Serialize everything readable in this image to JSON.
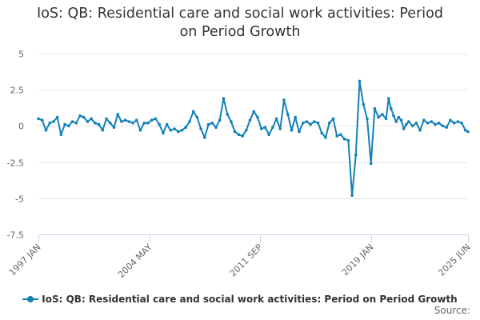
{
  "title_line1": "IoS: QB: Residential care and social work activities: Period",
  "title_line2": "on Period Growth",
  "source_label": "Source:",
  "colors": {
    "series": "#1380b8",
    "grid": "#e6e6e6",
    "axis": "#ccd6eb",
    "text": "#666666"
  },
  "chart_data": {
    "type": "line",
    "title": "IoS: QB: Residential care and social work activities: Period on Period Growth",
    "xlabel": "",
    "ylabel": "",
    "ylim": [
      -7.5,
      5
    ],
    "yticks": [
      5,
      2.5,
      0,
      -2.5,
      -5,
      -7.5
    ],
    "ytick_labels": [
      "5",
      "2.5",
      "0",
      "-2.5",
      "-5",
      "-7.5"
    ],
    "xlim": [
      1997.0,
      2025.42
    ],
    "xticks": [
      {
        "pos": 1997.0,
        "label": "1997 JAN"
      },
      {
        "pos": 2004.33,
        "label": "2004 MAY"
      },
      {
        "pos": 2011.67,
        "label": "2011 SEP"
      },
      {
        "pos": 2019.0,
        "label": "2019 JAN"
      },
      {
        "pos": 2025.42,
        "label": "2025 JUN"
      }
    ],
    "grid": true,
    "legend_position": "bottom",
    "series": [
      {
        "name": "IoS: QB: Residential care and social work activities: Period on Period Growth",
        "x": [
          1997.0,
          1997.25,
          1997.5,
          1997.75,
          1998.0,
          1998.25,
          1998.5,
          1998.75,
          1999.0,
          1999.25,
          1999.5,
          1999.75,
          2000.0,
          2000.25,
          2000.5,
          2000.75,
          2001.0,
          2001.25,
          2001.5,
          2001.75,
          2002.0,
          2002.25,
          2002.5,
          2002.75,
          2003.0,
          2003.25,
          2003.5,
          2003.75,
          2004.0,
          2004.25,
          2004.5,
          2004.75,
          2005.0,
          2005.25,
          2005.5,
          2005.75,
          2006.0,
          2006.25,
          2006.5,
          2006.75,
          2007.0,
          2007.25,
          2007.5,
          2007.75,
          2008.0,
          2008.25,
          2008.5,
          2008.75,
          2009.0,
          2009.25,
          2009.5,
          2009.75,
          2010.0,
          2010.25,
          2010.5,
          2010.75,
          2011.0,
          2011.25,
          2011.5,
          2011.75,
          2012.0,
          2012.25,
          2012.5,
          2012.75,
          2013.0,
          2013.25,
          2013.5,
          2013.75,
          2014.0,
          2014.25,
          2014.5,
          2014.75,
          2015.0,
          2015.25,
          2015.5,
          2015.75,
          2016.0,
          2016.25,
          2016.5,
          2016.75,
          2017.0,
          2017.25,
          2017.5,
          2017.75,
          2018.0,
          2018.25,
          2018.5,
          2018.75,
          2019.0,
          2019.25,
          2019.5,
          2019.75,
          2020.0,
          2020.17,
          2020.33,
          2020.5,
          2020.67,
          2020.83,
          2021.0,
          2021.17,
          2021.33,
          2021.5,
          2021.75,
          2022.0,
          2022.25,
          2022.5,
          2022.75,
          2023.0,
          2023.25,
          2023.5,
          2023.75,
          2024.0,
          2024.25,
          2024.5,
          2024.75,
          2025.0,
          2025.25,
          2025.42
        ],
        "values": [
          0.5,
          0.4,
          -0.3,
          0.2,
          0.3,
          0.6,
          -0.6,
          0.1,
          0.0,
          0.3,
          0.2,
          0.7,
          0.6,
          0.3,
          0.5,
          0.2,
          0.1,
          -0.3,
          0.5,
          0.2,
          -0.1,
          0.8,
          0.3,
          0.4,
          0.3,
          0.2,
          0.4,
          -0.3,
          0.2,
          0.2,
          0.4,
          0.5,
          0.1,
          -0.5,
          0.1,
          -0.3,
          -0.2,
          -0.4,
          -0.3,
          -0.1,
          0.3,
          1.0,
          0.6,
          -0.2,
          -0.8,
          0.1,
          0.2,
          -0.1,
          0.4,
          1.9,
          0.8,
          0.3,
          -0.4,
          -0.6,
          -0.7,
          -0.3,
          0.4,
          1.0,
          0.6,
          -0.2,
          -0.1,
          -0.6,
          -0.1,
          0.5,
          -0.2,
          1.8,
          0.8,
          -0.3,
          0.6,
          -0.4,
          0.2,
          0.3,
          0.1,
          0.3,
          0.2,
          -0.5,
          -0.8,
          0.2,
          0.5,
          -0.7,
          -0.6,
          -0.9,
          -1.0,
          -4.8,
          -2.0,
          3.1,
          1.5,
          0.5,
          -2.6,
          1.2,
          0.6,
          0.8,
          0.5,
          1.9,
          1.2,
          0.7,
          0.3,
          0.6,
          0.4,
          -0.2,
          0.1,
          0.3,
          0.0,
          0.2,
          -0.3,
          0.4,
          0.2,
          0.3,
          0.1,
          0.2,
          0.0,
          -0.1,
          0.4,
          0.2,
          0.3,
          0.2,
          -0.3,
          -0.4
        ],
        "color": "#1380b8"
      }
    ]
  }
}
